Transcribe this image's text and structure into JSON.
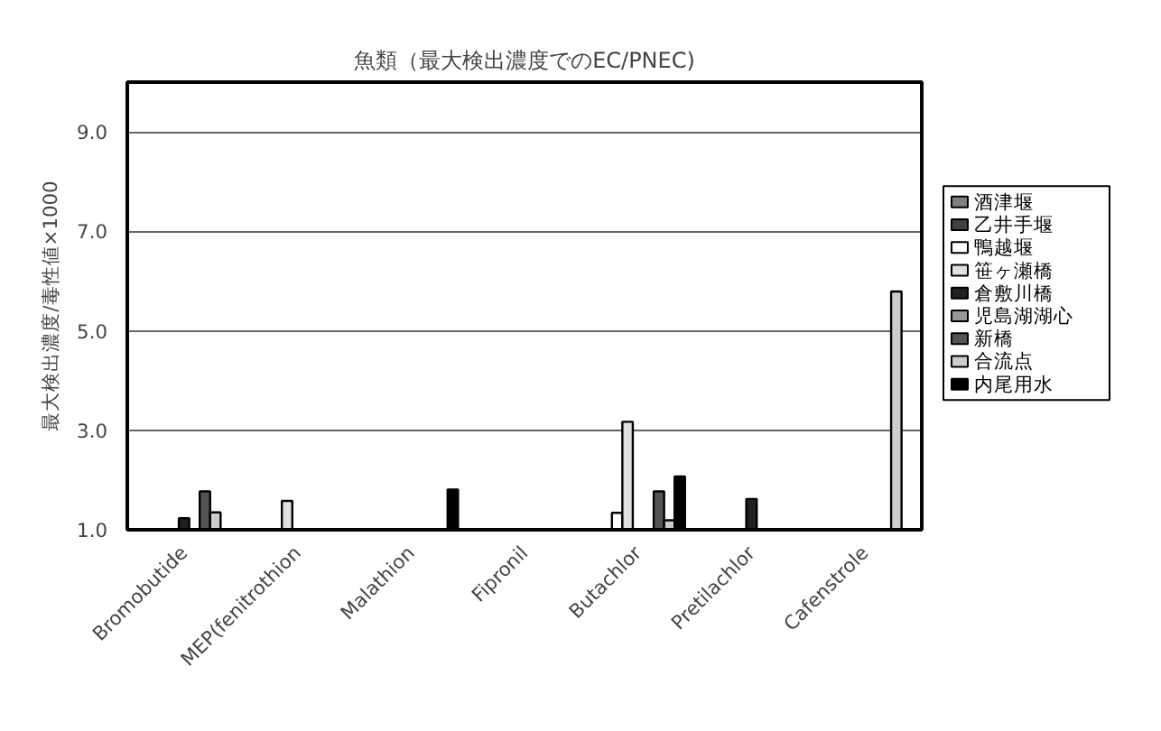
{
  "chart_data": {
    "type": "bar",
    "title": "魚類（最大検出濃度でのEC/PNEC)",
    "ylabel": "最大検出濃度/毒性値×1000",
    "categories": [
      "Bromobutide",
      "MEP(fenitrothion",
      "Malathion",
      "Fipronil",
      "Butachlor",
      "Pretilachlor",
      "Cafenstrole"
    ],
    "series": [
      {
        "name": "酒津堰",
        "color": "#808080",
        "values": [
          null,
          null,
          null,
          null,
          null,
          null,
          null
        ]
      },
      {
        "name": "乙井手堰",
        "color": "#404040",
        "values": [
          null,
          null,
          null,
          null,
          null,
          null,
          null
        ]
      },
      {
        "name": "鴨越堰",
        "color": "#ffffff",
        "values": [
          null,
          null,
          null,
          null,
          1.34,
          null,
          null
        ]
      },
      {
        "name": "笹ヶ瀬橋",
        "color": "#e0e0e0",
        "values": [
          null,
          1.58,
          null,
          null,
          3.17,
          null,
          null
        ]
      },
      {
        "name": "倉敷川橋",
        "color": "#202020",
        "values": [
          1.23,
          null,
          null,
          null,
          null,
          1.62,
          null
        ]
      },
      {
        "name": "児島湖湖心",
        "color": "#999999",
        "values": [
          null,
          null,
          null,
          null,
          null,
          null,
          null
        ]
      },
      {
        "name": "新橋",
        "color": "#555555",
        "values": [
          1.77,
          null,
          null,
          null,
          1.77,
          null,
          null
        ]
      },
      {
        "name": "合流点",
        "color": "#cccccc",
        "values": [
          1.35,
          null,
          null,
          null,
          1.19,
          null,
          5.79
        ]
      },
      {
        "name": "内尾用水",
        "color": "#000000",
        "values": [
          null,
          null,
          1.81,
          null,
          2.07,
          null,
          null
        ]
      }
    ],
    "ylim": [
      1,
      10
    ],
    "yticks": [
      {
        "value": 1,
        "label": "1.0"
      },
      {
        "value": 3,
        "label": "3.0"
      },
      {
        "value": 5,
        "label": "5.0"
      },
      {
        "value": 7,
        "label": "7.0"
      },
      {
        "value": 9,
        "label": "9.0"
      }
    ],
    "grid": "y",
    "legend": "right"
  }
}
